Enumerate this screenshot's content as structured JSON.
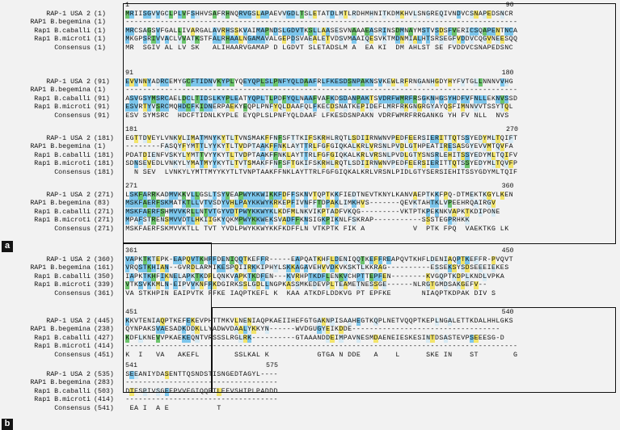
{
  "panels": {
    "a": "a",
    "b": "b"
  },
  "blocks": [
    {
      "ruler": {
        "start": "1",
        "end": "90"
      },
      "rows": [
        {
          "name": "RAP-1 USA 2",
          "pos": "(1)",
          "seq": "MRIISGVVGCLPLVFSHHVSAFRHNQRVGSLAPAEVVGDLTSLETATDLMTLRDHMHNITKDMKHVLSNGREQIVNDVCSNAPEDSNCR"
        },
        {
          "name": "RAP1 B.begemina",
          "pos": "(1)",
          "seq": "------------------------------------------------------------------------------------------"
        },
        {
          "name": "Rap1 B.caballi",
          "pos": "(1)",
          "seq": "MRCSAGSVFGALLIVARGALAVRHSSKVAIMAPNDSLGDVTKSLLAASESVNAAAEASRINSDMNAYMSTVSDSFVERICSQAPENTNCA"
        },
        {
          "name": "Rap1 B.microti",
          "pos": "(1)",
          "seq": "MKGPSRIVVACLVVATKSTFALRHAALNGAMAVALGEPDSVAEALETVDSVMAAIQESVKTMDNMIALHTSRSEGFVDDVCQGVNEESQQ"
        },
        {
          "name": "Consensus",
          "pos": "(1)",
          "seq": "MR  SGIV AL LV SK   ALIHAARVGAMAP D LGDVT SLETADSLM A  EA KI  DM AHLST SE FVDDVCSNAPEDSNC   "
        }
      ]
    },
    {
      "ruler": {
        "start": "91",
        "end": "180"
      },
      "rows": [
        {
          "name": "RAP-1 USA 2",
          "pos": "(91)",
          "seq": "EVVNNYADRCEMYGCFTIDNVKYPLYQEYQPLSLPNFYQLDAAFRLFKESDSNPAKNSVKEWLRFRNGANHGDYHYFVTGLLNNNVVHG"
        },
        {
          "name": "RAP1 B.begemina",
          "pos": "(1)",
          "seq": "------------------------------------------------------------------------------------------"
        },
        {
          "name": "Rap1 B.caballi",
          "pos": "(91)",
          "seq": "ASVGSYMSRCAELDCLTIDSLKYPLEATYQPLTLPDFYQLNAAFVAFKDSDANPAKTSVDRFWMRFRSGKNHGSYHDFVFNLLEKNVSSD"
        },
        {
          "name": "Rap1 B.microti",
          "pos": "(91)",
          "seq": "ESVRTYVSRCMQHDCFKIDNERPAEKYEQPLPNFYQLDAAFQLFKECDSNATKEPIDEFLMRFRKGNGRGYAYQSFIMNNVVTSSYTQL"
        },
        {
          "name": "Consensus",
          "pos": "(91)",
          "seq": "ESV SYMSRC  HDCFTIDNLKYPLE EYQPLSLPNFYQLDAAF LFKESDSNPAKN VDRFWMRFRRGANKG YH FV NLL  NVS   "
        }
      ]
    },
    {
      "ruler": {
        "start": "181",
        "end": "270"
      },
      "rows": [
        {
          "name": "RAP-1 USA 2",
          "pos": "(181)",
          "seq": "EGTTDVEYLVNKVLIMATMNYKYTLTVNSMAKFFNFSFTTKIFSKRHLRQTLSDIIRNWNVPEDFEERSIERITTQTSSYEDYMLTQIFT"
        },
        {
          "name": "RAP1 B.begemina",
          "pos": "(1)",
          "seq": "--------FASQYFYMTTLYYKYTLTVDPTAAKFFNKLAYTTRLFGFGIQKALKRLVRSNLPVDLGTHPEATIRESASGYEVVMTQVFA"
        },
        {
          "name": "Rap1 B.caballi",
          "pos": "(181)",
          "seq": "PDATDIENFVSKYLYMTTVYYKYTLTVDPTAAKFFNKLAYTTRLFGFGIQKALKRLVRSNLPVDLGTYSNSRLEHITSSYEDYMLTQIFV"
        },
        {
          "name": "Rap1 B.microti",
          "pos": "(181)",
          "seq": "SDNSEVEDLVNKYLYMATMYYKYTLTVTSMAKFFNFSFTGKIFSKRHLRQTLSDIIRNWNVPEDFEERSIERITTQTSSYEDYMLTQVFP"
        },
        {
          "name": "Consensus",
          "pos": "(181)",
          "seq": "  N SEV  LVNKYLYMTTMYYKYTLTVNPTAAKFFNKLAYTTRLFGFGIQKALKRLVRSNLPIDLGTYSERSIEHITSSYGDYMLTQIF "
        }
      ]
    },
    {
      "ruler": {
        "start": "271",
        "end": "360"
      },
      "rows": [
        {
          "name": "RAP-1 USA 2",
          "pos": "(271)",
          "seq": "LSKFARRKADMVKKVLLGSLTSYVEAPWYKKWIKKFDFFSKNVTQPTKKFIEDTNEVTKNYLKANVAEPTKKFPQ-DTMEKTKGYLKEN"
        },
        {
          "name": "RAP1 B.begemina",
          "pos": "(83)",
          "seq": "MSKFAERFSKMATKTLLVTVSDYVHLPAYKKWYKRKEPFIVNFFTDPAKLIMKHVS-------QEVKTAHTKLVPEEHRQAIRGV"
        },
        {
          "name": "Rap1 B.caballi",
          "pos": "(271)",
          "seq": "MSKFAERFSHMVVKRLLNTVTGYVDTPWYKKWYKLKDFMLNKVIKPTADFVKQG---------VKTPTKPEKNKVAPKTKDIPONE"
        },
        {
          "name": "Rap1 B.microti",
          "pos": "(271)",
          "seq": "MPAFSTRENSMVVDTLHKIIGKYQKMPWYKKWEKSVADFFKNSIGKPIKNLFSKRAP-----------SSSTEGPRHKK"
        },
        {
          "name": "Consensus",
          "pos": "(271)",
          "seq": "MSKFAERFSKMVVKTLL TVT YVDLPWYKKWYKKFKDFFLN VTKPTK FIK A           V  PTK FPQ  VAEKTKG LK"
        }
      ]
    },
    {
      "ruler": {
        "start": "361",
        "end": "450"
      },
      "rows": [
        {
          "name": "RAP-1 USA 2",
          "pos": "(360)",
          "seq": "VAPKTKTEPK-EAPQVTKHFFDENIQQTKEFFR-----EAPQATKHFLDENIQQTKEFFREAPQVTKHFLDENIAQPTKEFFR-PVQVT"
        },
        {
          "name": "RAP1 B.begemina",
          "pos": "(161)",
          "seq": "VRQSTKHIAN--GVRDLARMIKESPQIIRKKIPHYLSKKAGAVEHVVDKVKSKTLKKRAG----------ESSEKSYSDSEEEIEKES"
        },
        {
          "name": "Rap1 B.caballi",
          "pos": "(350)",
          "seq": "IAPKTKHFIKNELAPKTKDPLQNKVAPKTKDFEN---KVRHPTKDFLENKVCHPTTEPFEN--------KVGQPTKDPLKNDLVPKA"
        },
        {
          "name": "Rap1 B.microti",
          "pos": "(339)",
          "seq": "VTKSVKKMLN-EIPVVKNFFKDGIRKSSLGDLLNGPKASSMKEDEVPLTEAMETNESSGE------NLRGTGMDSAKGEFV--"
        },
        {
          "name": "Consensus",
          "pos": "(361)",
          "seq": "VA STKHPIN EAIPVTK FFKE IAQPTKEFL K  KAA ATKDFLDDKVG PT EPFKE       NIAQPTKDPAK DIV S "
        }
      ]
    },
    {
      "ruler": {
        "start": "451",
        "end": "540"
      },
      "rows": [
        {
          "name": "RAP-1 USA 2",
          "pos": "(445)",
          "seq": "KKVTENIAQPTKEFEKEVPHTTMKVLNENIAQPKAEIIHEFGTGAKNPISAAHEGTKQPLNETVQQPTKEPLNGALETTKDALHHLGKS"
        },
        {
          "name": "RAP1 B.begemina",
          "pos": "(238)",
          "seq": "QYNPAKSVAESADKDDKLLYADWVDAALYKKYN------WVDGUGYEIKDDE----------------------------------"
        },
        {
          "name": "Rap1 B.caballi",
          "pos": "(427)",
          "seq": "KDFLKNEVVPKAEKEQNTVRSSSLRGLRK----------GTAAANDDEIMPAVNESMDAENEIESKESINTDSASTEVPSEEESG-D"
        },
        {
          "name": "Rap1 B.microti",
          "pos": "(414)",
          "seq": "------------------------------------------------------------------------------------------"
        },
        {
          "name": "Consensus",
          "pos": "(451)",
          "seq": "K  I   VA   AKEFL        SSLKAL K           GTGA N DDE   A    L      SKE IN    ST        G "
        }
      ]
    },
    {
      "ruler": {
        "start": "541",
        "end": "575"
      },
      "rows": [
        {
          "name": "RAP-1 USA 2",
          "pos": "(535)",
          "seq": "SEEANIYDASENTTQSNDSTISNGEDTAGYL----"
        },
        {
          "name": "RAP1 B.begemina",
          "pos": "(283)",
          "seq": "-----------------------------------"
        },
        {
          "name": "Rap1 B.caballi",
          "pos": "(503)",
          "seq": "DTESPIVSGEEPVVEGIQQPTLEEVSHIPLPADDD"
        },
        {
          "name": "Rap1 B.microti",
          "pos": "(414)",
          "seq": "-----------------------------------"
        },
        {
          "name": "Consensus",
          "pos": "(541)",
          "seq": " EA I  A E           T             "
        }
      ]
    }
  ],
  "colors": {
    "identical": "#7cc6ec",
    "conserved": "#6cc46c",
    "similar": "#f2e46a",
    "weak": "#d7eaf4"
  }
}
